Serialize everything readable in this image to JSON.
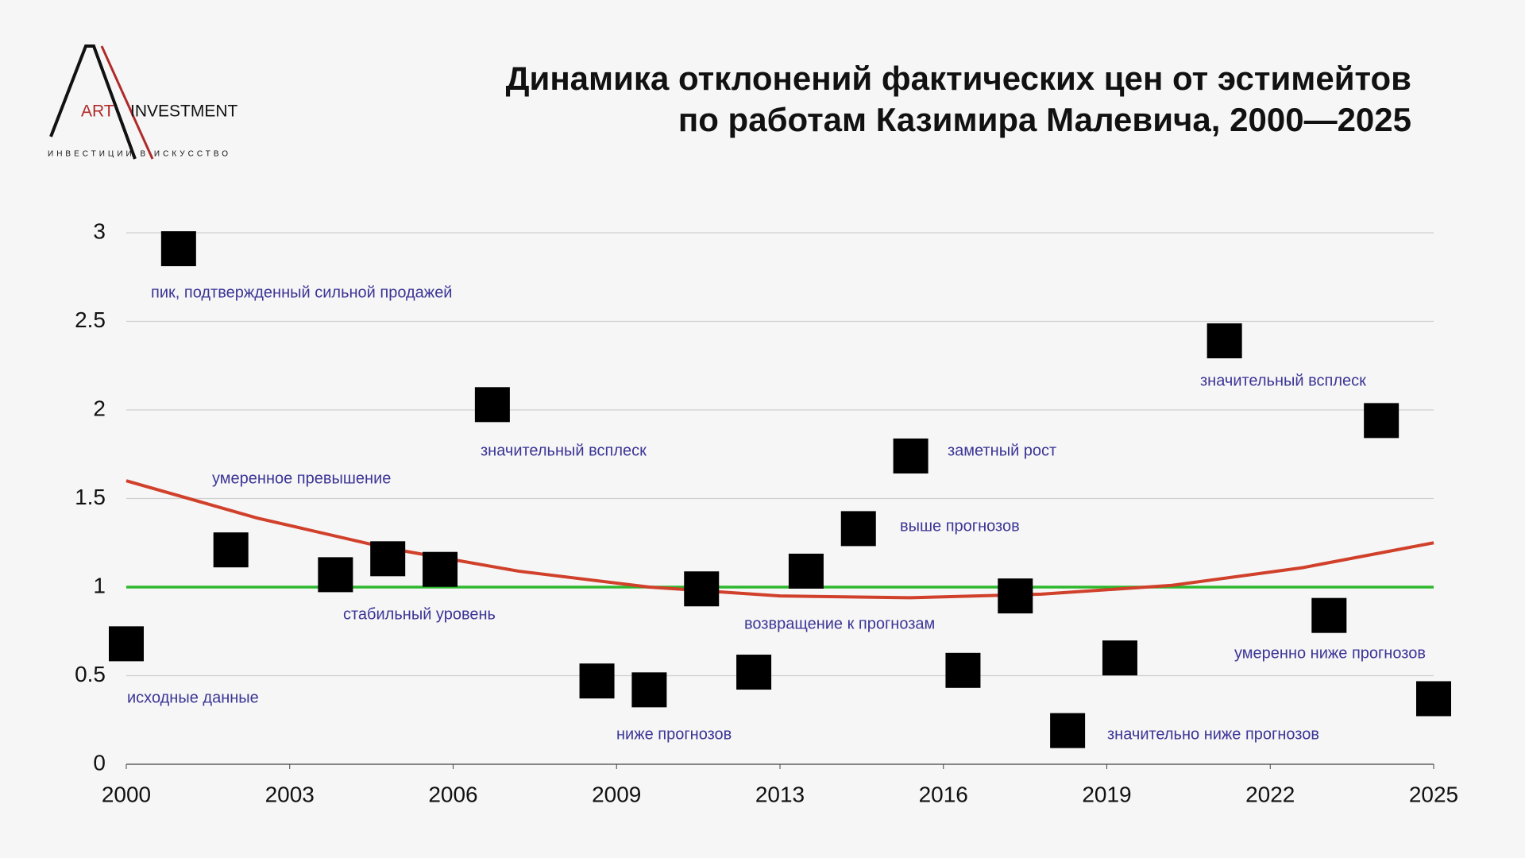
{
  "chart_data": {
    "type": "scatter",
    "title": [
      "Динамика отклонений фактических цен от эстимейтов",
      "по работам Казимира Малевича, 2000—2025"
    ],
    "logo": {
      "left": "ART",
      "right": "INVESTMENT",
      "tagline": "ИНВЕСТИЦИИ В ИСКУССТВО"
    },
    "series": [
      {
        "color": "#000000",
        "x": [
          2000,
          2001,
          2002,
          2004,
          2005,
          2006,
          2007,
          2009,
          2010,
          2011,
          2012,
          2013,
          2014,
          2015,
          2016,
          2017,
          2018,
          2019,
          2021,
          2023,
          2024,
          2025
        ],
        "values": [
          0.68,
          2.91,
          1.21,
          1.07,
          1.16,
          1.1,
          2.03,
          0.47,
          0.42,
          0.99,
          0.52,
          1.09,
          1.33,
          1.74,
          0.53,
          0.95,
          0.19,
          0.6,
          2.39,
          0.84,
          1.94,
          0.37
        ]
      }
    ],
    "trend": {
      "color": "#d0402a",
      "x": [
        2000,
        2002.5,
        2005,
        2007.5,
        2010,
        2012.5,
        2015,
        2017.5,
        2020,
        2022.5,
        2025
      ],
      "values": [
        1.6,
        1.39,
        1.22,
        1.09,
        1.0,
        0.95,
        0.94,
        0.96,
        1.01,
        1.11,
        1.25
      ]
    },
    "reference_line": {
      "value": 1,
      "color": "#2db82d"
    },
    "annotations": [
      "пик, подтвержденный сильной продажей",
      "умеренное превышение",
      "значительный всплеск",
      "заметный рост",
      "выше прогнозов",
      "стабильный уровень",
      "возвращение к прогнозам",
      "исходные данные",
      "ниже прогнозов",
      "значительный всплеск",
      "умеренно ниже прогнозов",
      "значительно ниже прогнозов"
    ],
    "xlim": [
      2000,
      2025
    ],
    "xticks": [
      2000,
      {
        "value": 2003.125,
        "label": "2003"
      },
      {
        "value": 2006.25,
        "label": "2006"
      },
      {
        "value": 2009.375,
        "label": "2009"
      },
      {
        "value": 2012.5,
        "label": "2013"
      },
      {
        "value": 2015.625,
        "label": "2016"
      },
      {
        "value": 2018.75,
        "label": "2019"
      },
      {
        "value": 2021.875,
        "label": "2022"
      },
      2025
    ],
    "ylim": [
      0,
      3
    ],
    "yticks": [
      0,
      0.5,
      1,
      1.5,
      2,
      2.5,
      3
    ],
    "grid": true
  }
}
